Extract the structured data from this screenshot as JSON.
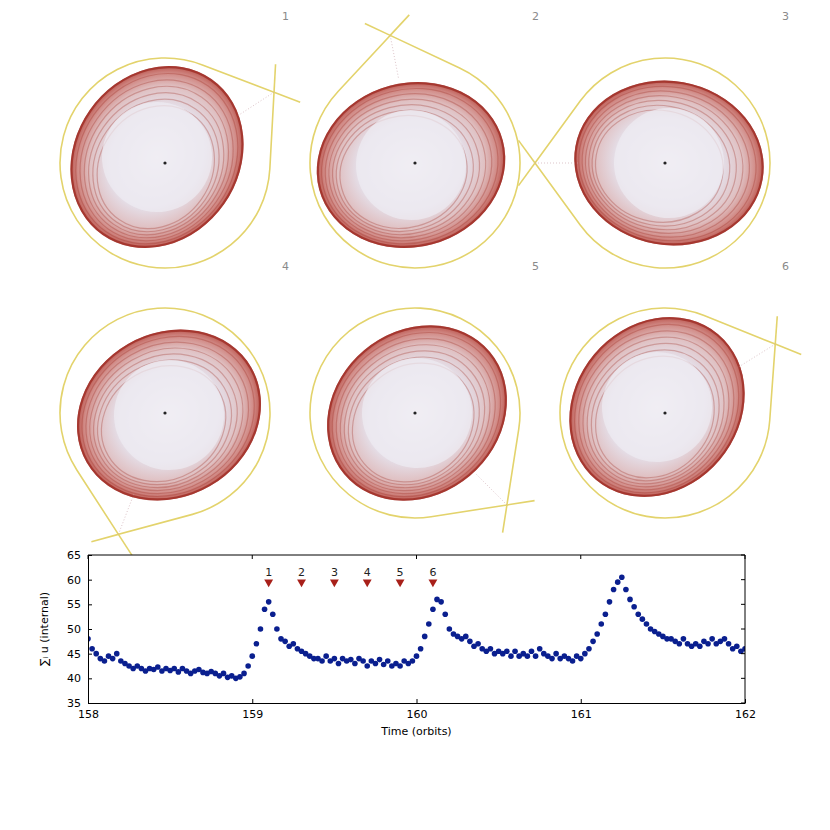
{
  "chart_data": {
    "type": "scatter",
    "x_label": "Time (orbits)",
    "y_label": "∑ᵢ u (internal)",
    "xlim": [
      158,
      162
    ],
    "xticks": [
      158,
      159,
      160,
      161,
      162
    ],
    "ylim": [
      35,
      65
    ],
    "yticks": [
      35,
      40,
      45,
      50,
      55,
      60,
      65
    ],
    "grid": false,
    "marker": "circle",
    "series": [
      {
        "color": "#0a1f8f",
        "marker": "circle",
        "x": [
          158,
          158.025,
          158.05,
          158.075,
          158.1,
          158.125,
          158.15,
          158.175,
          158.2,
          158.225,
          158.25,
          158.275,
          158.3,
          158.325,
          158.35,
          158.375,
          158.4,
          158.425,
          158.45,
          158.475,
          158.5,
          158.525,
          158.55,
          158.575,
          158.6,
          158.625,
          158.65,
          158.675,
          158.7,
          158.725,
          158.75,
          158.775,
          158.8,
          158.825,
          158.85,
          158.875,
          158.9,
          158.925,
          158.95,
          158.975,
          159,
          159.025,
          159.05,
          159.075,
          159.1,
          159.125,
          159.15,
          159.175,
          159.2,
          159.225,
          159.25,
          159.275,
          159.3,
          159.325,
          159.35,
          159.375,
          159.4,
          159.425,
          159.45,
          159.475,
          159.5,
          159.525,
          159.55,
          159.575,
          159.6,
          159.625,
          159.65,
          159.675,
          159.7,
          159.725,
          159.75,
          159.775,
          159.8,
          159.825,
          159.85,
          159.875,
          159.9,
          159.925,
          159.95,
          159.975,
          160,
          160.025,
          160.05,
          160.075,
          160.1,
          160.125,
          160.15,
          160.175,
          160.2,
          160.225,
          160.25,
          160.275,
          160.3,
          160.325,
          160.35,
          160.375,
          160.4,
          160.425,
          160.45,
          160.475,
          160.5,
          160.525,
          160.55,
          160.575,
          160.6,
          160.625,
          160.65,
          160.675,
          160.7,
          160.725,
          160.75,
          160.775,
          160.8,
          160.825,
          160.85,
          160.875,
          160.9,
          160.925,
          160.95,
          160.975,
          161,
          161.025,
          161.05,
          161.075,
          161.1,
          161.125,
          161.15,
          161.175,
          161.2,
          161.225,
          161.25,
          161.275,
          161.3,
          161.325,
          161.35,
          161.375,
          161.4,
          161.425,
          161.45,
          161.475,
          161.5,
          161.525,
          161.55,
          161.575,
          161.6,
          161.625,
          161.65,
          161.675,
          161.7,
          161.725,
          161.75,
          161.775,
          161.8,
          161.825,
          161.85,
          161.875,
          161.9,
          161.925,
          161.95,
          161.975,
          162
        ],
        "values": [
          48,
          46,
          45,
          44,
          43.5,
          44.5,
          44,
          45,
          43.5,
          43,
          42.5,
          42,
          42.5,
          42,
          41.5,
          42,
          41.8,
          42.3,
          41.5,
          42,
          41.6,
          42,
          41.3,
          42,
          41.5,
          41,
          41.5,
          41.8,
          41.2,
          41,
          41.4,
          41,
          40.5,
          41,
          40.2,
          40.5,
          40,
          40.3,
          41,
          42.5,
          44.5,
          47,
          50,
          54,
          55.5,
          53,
          50,
          48,
          47.5,
          46.5,
          47,
          46,
          45.5,
          45,
          44.5,
          44,
          44,
          43.5,
          44.5,
          43.5,
          44,
          43,
          44,
          43.5,
          43.8,
          43,
          44,
          43.5,
          42.5,
          43.5,
          43,
          43.8,
          42.8,
          43.5,
          42.5,
          43,
          42.5,
          43.5,
          43,
          43.5,
          44.5,
          46,
          48.5,
          51,
          54,
          56,
          55.5,
          53,
          50,
          49,
          48.5,
          48,
          48.5,
          47.5,
          46.5,
          47,
          46,
          45.5,
          46,
          45,
          45.5,
          45,
          45.5,
          44.5,
          45.5,
          44.5,
          45,
          44.5,
          45.5,
          44.5,
          46,
          45,
          44.5,
          44,
          45,
          44,
          44.5,
          44,
          43.5,
          44.5,
          44,
          45,
          46,
          47.5,
          49,
          51,
          53,
          55.5,
          58,
          59.5,
          60.5,
          58,
          56,
          54.5,
          53,
          52,
          51,
          50,
          49.5,
          49,
          48.5,
          48,
          48,
          47.5,
          47,
          48,
          47,
          46.5,
          47,
          46.5,
          47.5,
          47,
          48,
          47,
          47.5,
          48,
          47,
          46,
          46.5,
          45.5,
          46
        ]
      }
    ],
    "annotations": {
      "x": [
        159.1,
        159.3,
        159.5,
        159.7,
        159.9,
        160.1
      ],
      "y": [
        59.5,
        59.5,
        59.5,
        59.5,
        59.5,
        59.5
      ],
      "labels": [
        "1",
        "2",
        "3",
        "4",
        "5",
        "6"
      ],
      "color": "#a8201a",
      "marker": "triangle-down"
    }
  }
}
